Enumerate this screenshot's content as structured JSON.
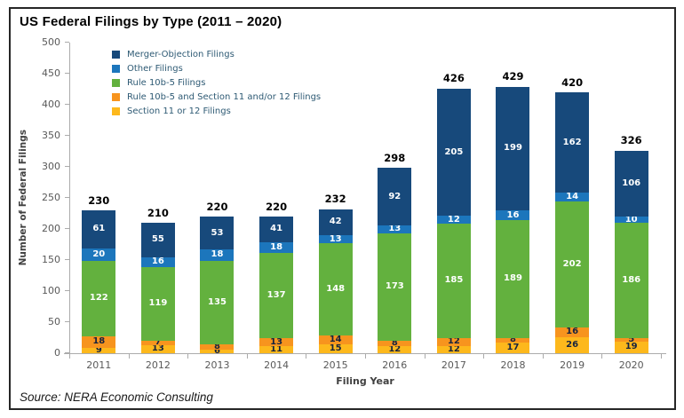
{
  "chart_data": {
    "type": "bar",
    "stacked": true,
    "title": "US Federal Filings by Type (2011 – 2020)",
    "xlabel": "Filing Year",
    "ylabel": "Number of Federal Filings",
    "ylim": [
      0,
      500
    ],
    "ytick_step": 50,
    "grid": false,
    "legend_position": "upper-left",
    "categories": [
      "2011",
      "2012",
      "2013",
      "2014",
      "2015",
      "2016",
      "2017",
      "2018",
      "2019",
      "2020"
    ],
    "series": [
      {
        "name": "Section 11 or 12 Filings",
        "color": "#FDB81C",
        "label_color": "#16233F",
        "values": [
          9,
          13,
          6,
          11,
          15,
          12,
          12,
          17,
          26,
          19
        ]
      },
      {
        "name": "Rule 10b-5 and Section 11 and/or 12 Filings",
        "color": "#F7941E",
        "label_color": "#16233F",
        "values": [
          18,
          7,
          8,
          13,
          14,
          8,
          12,
          8,
          16,
          5
        ]
      },
      {
        "name": "Rule 10b-5 Filings",
        "color": "#63B13E",
        "label_color": "#FFFFFF",
        "values": [
          122,
          119,
          135,
          137,
          148,
          173,
          185,
          189,
          202,
          186
        ]
      },
      {
        "name": "Other Filings",
        "color": "#1C76BC",
        "label_color": "#FFFFFF",
        "values": [
          20,
          16,
          18,
          18,
          13,
          13,
          12,
          16,
          14,
          10
        ]
      },
      {
        "name": "Merger-Objection Filings",
        "color": "#17497B",
        "label_color": "#FFFFFF",
        "values": [
          61,
          55,
          53,
          41,
          42,
          92,
          205,
          199,
          162,
          106
        ]
      }
    ],
    "totals": [
      230,
      210,
      220,
      220,
      232,
      298,
      426,
      429,
      420,
      326
    ]
  },
  "source": {
    "text": "Source: NERA Economic Consulting"
  }
}
